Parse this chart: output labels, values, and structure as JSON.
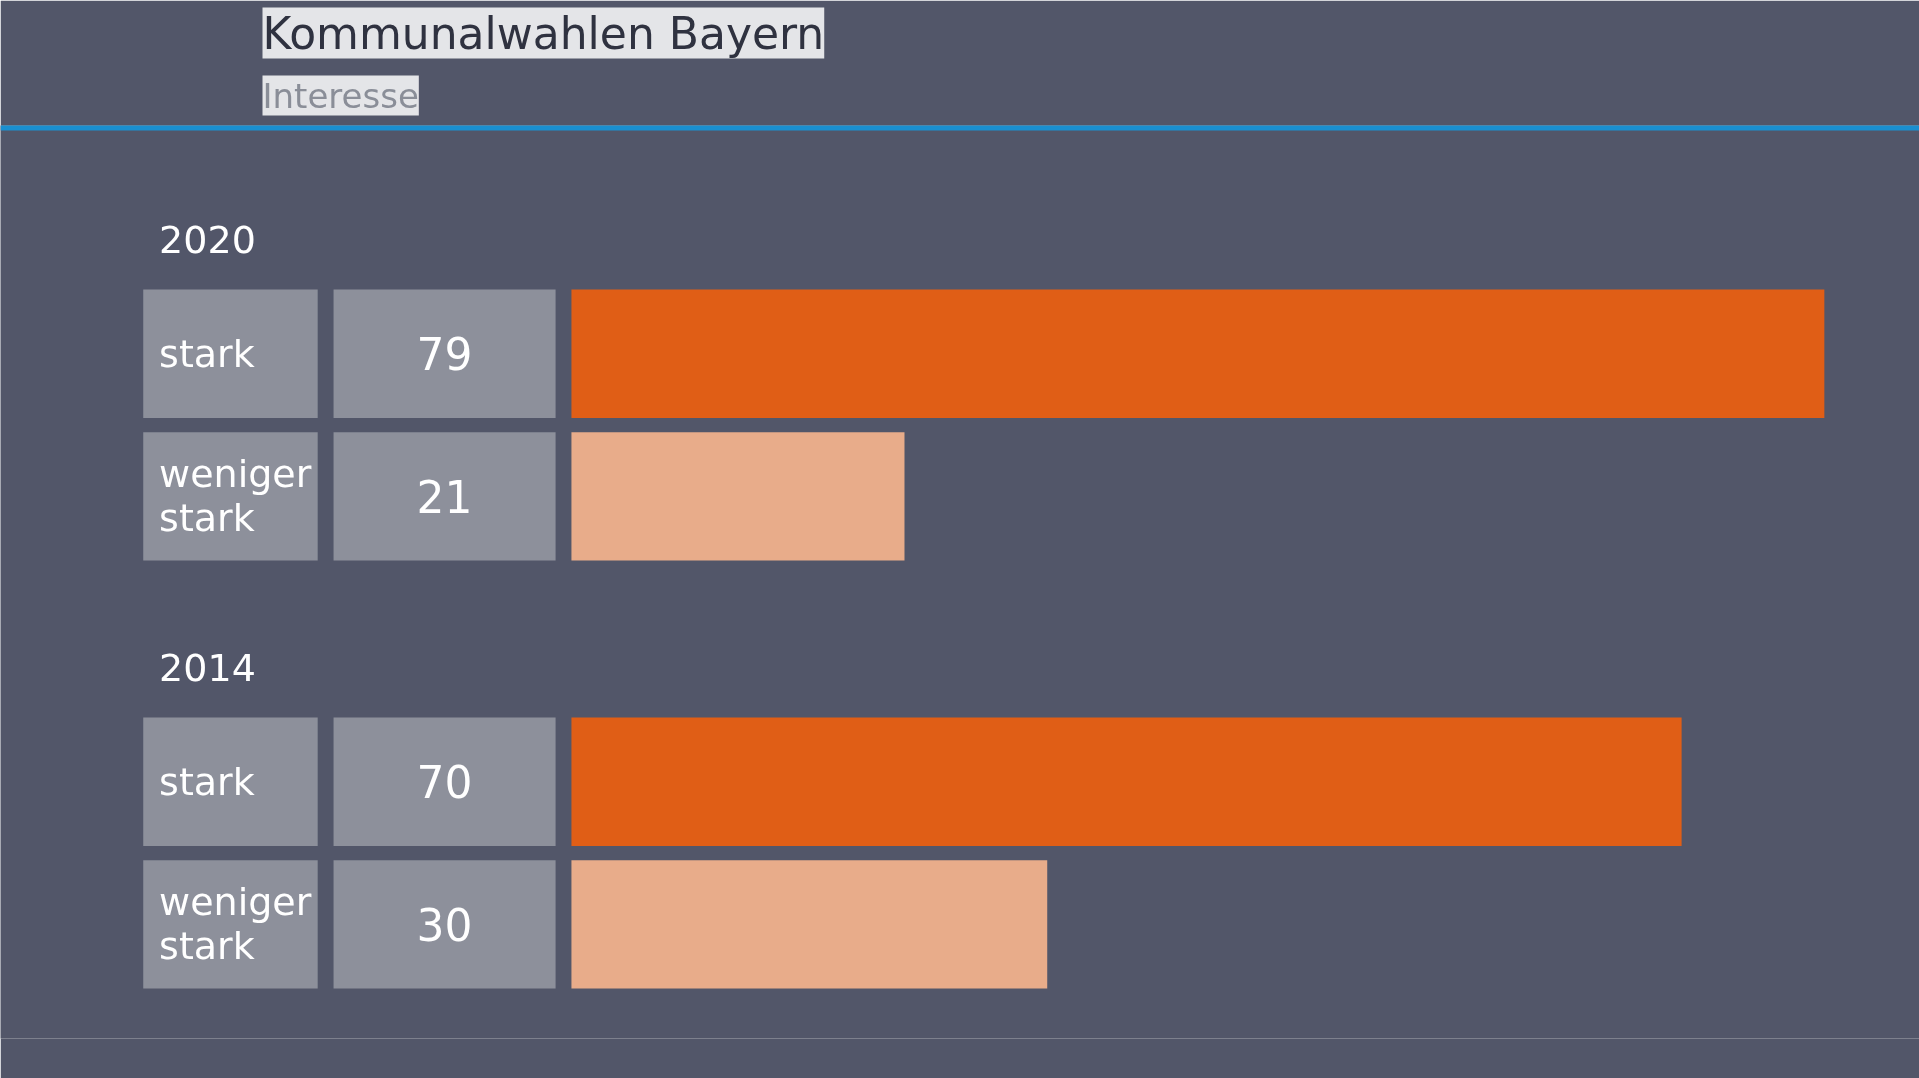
{
  "chart_data": {
    "type": "bar",
    "orientation": "horizontal",
    "title": "Kommunalwahlen Bayern",
    "subtitle": "Interesse",
    "categories": [
      "stark",
      "weniger stark",
      "stark",
      "weniger stark"
    ],
    "values": [
      79,
      21,
      70,
      30
    ],
    "colors": [
      "#e05e16",
      "#e8ac8a",
      "#e05e16",
      "#e8ac8a"
    ],
    "data_labels": true,
    "annotations": [
      "2020",
      "2014"
    ]
  }
}
